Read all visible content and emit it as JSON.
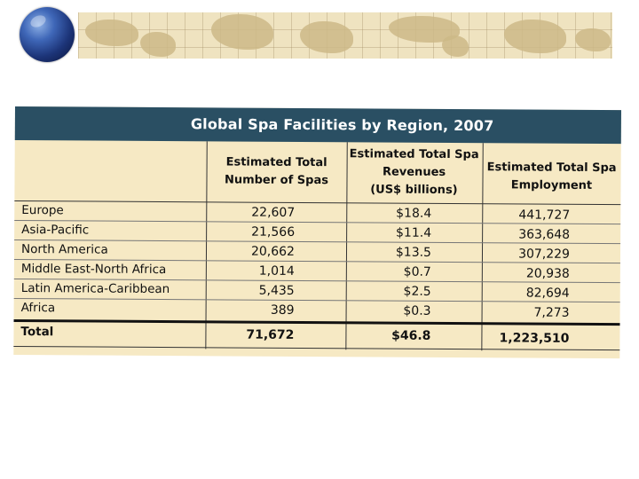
{
  "table": {
    "title": "Global Spa Facilities by Region, 2007",
    "headers": [
      "Estimated Total\nNumber of Spas",
      "Estimated Total Spa\nRevenues\n(US$ billions)",
      "Estimated Total Spa\nEmployment"
    ],
    "rows": [
      {
        "region": "Europe",
        "spas": "22,607",
        "revenue": "$18.4",
        "employment": "441,727"
      },
      {
        "region": "Asia-Pacific",
        "spas": "21,566",
        "revenue": "$11.4",
        "employment": "363,648"
      },
      {
        "region": "North America",
        "spas": "20,662",
        "revenue": "$13.5",
        "employment": "307,229"
      },
      {
        "region": "Middle East-North Africa",
        "spas": "1,014",
        "revenue": "$0.7",
        "employment": "20,938"
      },
      {
        "region": "Latin America-Caribbean",
        "spas": "5,435",
        "revenue": "$2.5",
        "employment": "82,694"
      },
      {
        "region": "Africa",
        "spas": "389",
        "revenue": "$0.3",
        "employment": "7,273"
      }
    ],
    "total": {
      "region": "Total",
      "spas": "71,672",
      "revenue": "$46.8",
      "employment": "1,223,510"
    }
  },
  "colors": {
    "title_bar": "#2a4f63",
    "table_bg": "#f6e9c4",
    "banner_bg": "#efe3c0"
  },
  "icons": [
    "globe-icon",
    "world-map-banner"
  ]
}
